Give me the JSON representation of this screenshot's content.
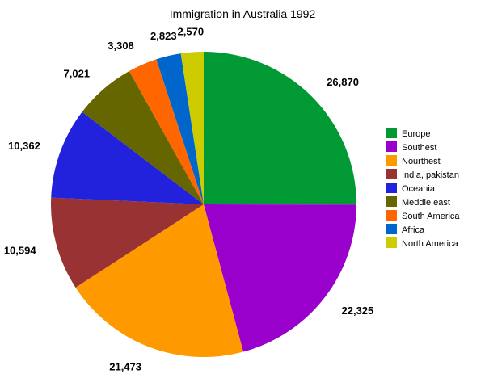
{
  "chart_data": {
    "type": "pie",
    "title": "Immigration in Australia 1992",
    "legend_position": "right",
    "start_angle": "12 o'clock",
    "direction": "clockwise",
    "slices": [
      {
        "label": "Europe",
        "value": 26870,
        "value_label": "26,870",
        "color": "#009933"
      },
      {
        "label": "Southest",
        "value": 22325,
        "value_label": "22,325",
        "color": "#9900cc"
      },
      {
        "label": "Nourthest",
        "value": 21473,
        "value_label": "21,473",
        "color": "#ff9900"
      },
      {
        "label": "India, pakistan",
        "value": 10594,
        "value_label": "10,594",
        "color": "#993333"
      },
      {
        "label": "Oceania",
        "value": 10362,
        "value_label": "10,362",
        "color": "#2222dd"
      },
      {
        "label": "Meddle east",
        "value": 7021,
        "value_label": "7,021",
        "color": "#666600"
      },
      {
        "label": "South America",
        "value": 3308,
        "value_label": "3,308",
        "color": "#ff6600"
      },
      {
        "label": "Africa",
        "value": 2823,
        "value_label": "2,823",
        "color": "#0066cc"
      },
      {
        "label": "North America",
        "value": 2570,
        "value_label": "2,570",
        "color": "#cccc00"
      }
    ]
  }
}
